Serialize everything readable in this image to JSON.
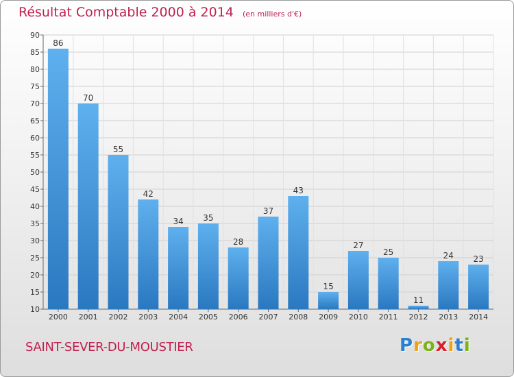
{
  "header": {
    "title": "Résultat Comptable 2000 à 2014",
    "subtitle": "(en milliers d'€)"
  },
  "footer": {
    "commune": "SAINT-SEVER-DU-MOUSTIER",
    "logo_letters": [
      "P",
      "r",
      "o",
      "x",
      "i",
      "t",
      "i"
    ],
    "logo_colors": [
      "#2a7fcf",
      "#e8a317",
      "#7ab318",
      "#d6202a",
      "#e8a317",
      "#2a7fcf",
      "#7ab318"
    ]
  },
  "chart_data": {
    "type": "bar",
    "categories": [
      "2000",
      "2001",
      "2002",
      "2003",
      "2004",
      "2005",
      "2006",
      "2007",
      "2008",
      "2009",
      "2010",
      "2011",
      "2012",
      "2013",
      "2014"
    ],
    "values": [
      86,
      70,
      55,
      42,
      34,
      35,
      28,
      37,
      43,
      15,
      27,
      25,
      11,
      24,
      23
    ],
    "data_labels": [
      "86",
      "70",
      "55",
      "42",
      "34",
      "35",
      "28",
      "37",
      "43",
      "15",
      "27",
      "25",
      "11",
      "24",
      "23"
    ],
    "ylim": [
      10,
      90
    ],
    "yticks": [
      10,
      15,
      20,
      25,
      30,
      35,
      40,
      45,
      50,
      55,
      60,
      65,
      70,
      75,
      80,
      85,
      90
    ],
    "grid": true,
    "bar_color_top": "#5fb0ee",
    "bar_color_bottom": "#2a78c0"
  }
}
